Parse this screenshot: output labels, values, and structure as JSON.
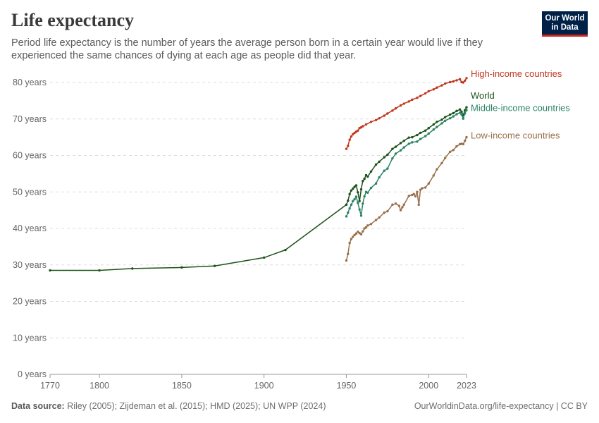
{
  "header": {
    "title": "Life expectancy",
    "subtitle": "Period life expectancy is the number of years the average person born in a certain year would live if they experienced the same chances of dying at each age as people did that year.",
    "logo_line1": "Our World",
    "logo_line2": "in Data"
  },
  "footer": {
    "source_label": "Data source:",
    "source_text": "Riley (2005); Zijdeman et al. (2015); HMD (2025); UN WPP (2024)",
    "url": "OurWorldinData.org/life-expectancy | CC BY"
  },
  "chart_data": {
    "type": "line",
    "title": "Life expectancy",
    "xlabel": "",
    "ylabel": "",
    "xlim": [
      1770,
      2023
    ],
    "ylim": [
      0,
      80
    ],
    "grid": true,
    "x_ticks": [
      1770,
      1800,
      1850,
      1900,
      1950,
      2000,
      2023
    ],
    "y_ticks": [
      0,
      10,
      20,
      30,
      40,
      50,
      60,
      70,
      80
    ],
    "y_tick_labels": [
      "0 years",
      "10 years",
      "20 years",
      "30 years",
      "40 years",
      "50 years",
      "60 years",
      "70 years",
      "80 years"
    ],
    "series": [
      {
        "name": "High-income countries",
        "color": "#c0371d",
        "x": [
          1950,
          1951,
          1952,
          1953,
          1954,
          1955,
          1956,
          1957,
          1958,
          1959,
          1960,
          1962,
          1965,
          1968,
          1970,
          1973,
          1975,
          1978,
          1980,
          1983,
          1985,
          1988,
          1990,
          1993,
          1995,
          1998,
          2000,
          2003,
          2005,
          2008,
          2010,
          2013,
          2015,
          2017,
          2019,
          2020,
          2021,
          2022,
          2023
        ],
        "values": [
          61.8,
          62.6,
          64.3,
          65.2,
          65.8,
          66.2,
          66.5,
          66.8,
          67.5,
          67.7,
          68.0,
          68.5,
          69.2,
          69.7,
          70.2,
          70.9,
          71.5,
          72.3,
          72.9,
          73.7,
          74.2,
          74.8,
          75.3,
          75.8,
          76.3,
          77.0,
          77.6,
          78.1,
          78.6,
          79.2,
          79.7,
          80.1,
          80.3,
          80.6,
          80.9,
          80.1,
          80.0,
          80.5,
          81.2
        ]
      },
      {
        "name": "World",
        "color": "#1d5219",
        "x": [
          1770,
          1800,
          1820,
          1850,
          1870,
          1900,
          1913,
          1950,
          1951,
          1952,
          1953,
          1954,
          1955,
          1956,
          1957,
          1958,
          1959,
          1960,
          1961,
          1962,
          1963,
          1965,
          1968,
          1970,
          1973,
          1975,
          1978,
          1980,
          1983,
          1985,
          1988,
          1990,
          1993,
          1995,
          1998,
          2000,
          2003,
          2005,
          2008,
          2010,
          2013,
          2015,
          2017,
          2019,
          2020,
          2021,
          2022,
          2023
        ],
        "values": [
          28.5,
          28.5,
          29.0,
          29.3,
          29.7,
          32.0,
          34.1,
          46.5,
          47.6,
          49.4,
          50.4,
          50.9,
          51.4,
          51.8,
          49.9,
          47.5,
          50.7,
          53.0,
          53.6,
          54.6,
          54.2,
          55.6,
          57.5,
          58.3,
          59.5,
          60.2,
          61.8,
          62.4,
          63.4,
          64.0,
          64.9,
          65.0,
          65.6,
          66.2,
          66.8,
          67.5,
          68.5,
          69.2,
          69.8,
          70.5,
          71.2,
          71.6,
          72.2,
          72.6,
          72.0,
          71.0,
          72.4,
          73.2
        ]
      },
      {
        "name": "Middle-income countries",
        "color": "#2c8465",
        "x": [
          1950,
          1951,
          1952,
          1953,
          1954,
          1955,
          1956,
          1957,
          1958,
          1959,
          1960,
          1961,
          1962,
          1963,
          1965,
          1968,
          1970,
          1973,
          1975,
          1978,
          1980,
          1983,
          1985,
          1988,
          1990,
          1993,
          1995,
          1998,
          2000,
          2003,
          2005,
          2008,
          2010,
          2013,
          2015,
          2017,
          2019,
          2020,
          2021,
          2022,
          2023
        ],
        "values": [
          43.3,
          44.3,
          45.5,
          46.5,
          47.5,
          48.0,
          48.7,
          47.0,
          45.2,
          43.5,
          46.8,
          48.8,
          50.0,
          49.8,
          51.1,
          52.3,
          54.0,
          55.8,
          56.4,
          59.2,
          60.5,
          61.4,
          62.2,
          63.2,
          63.6,
          63.8,
          64.5,
          65.3,
          66.0,
          67.1,
          67.8,
          68.8,
          69.5,
          70.2,
          70.7,
          71.3,
          71.7,
          71.2,
          70.1,
          71.5,
          72.4
        ]
      },
      {
        "name": "Low-income countries",
        "color": "#99704a",
        "x": [
          1950,
          1951,
          1952,
          1953,
          1954,
          1955,
          1956,
          1957,
          1958,
          1959,
          1960,
          1961,
          1962,
          1963,
          1965,
          1968,
          1970,
          1973,
          1975,
          1978,
          1980,
          1982,
          1983,
          1984,
          1985,
          1988,
          1990,
          1991,
          1992,
          1993,
          1994,
          1995,
          1996,
          1998,
          2000,
          2003,
          2005,
          2008,
          2010,
          2013,
          2015,
          2017,
          2019,
          2020,
          2021,
          2022,
          2023
        ],
        "values": [
          31.2,
          33.0,
          36.0,
          37.1,
          37.7,
          38.2,
          38.6,
          39.1,
          38.7,
          38.4,
          39.2,
          40.0,
          40.3,
          40.8,
          41.2,
          42.3,
          43.0,
          44.3,
          44.7,
          46.5,
          46.8,
          46.2,
          45.0,
          45.8,
          46.5,
          48.9,
          49.2,
          49.4,
          48.8,
          50.0,
          46.5,
          50.6,
          51.0,
          51.2,
          52.3,
          54.5,
          56.2,
          57.9,
          59.3,
          61.0,
          61.5,
          62.5,
          63.1,
          63.2,
          63.1,
          64.0,
          65.0
        ]
      }
    ]
  }
}
